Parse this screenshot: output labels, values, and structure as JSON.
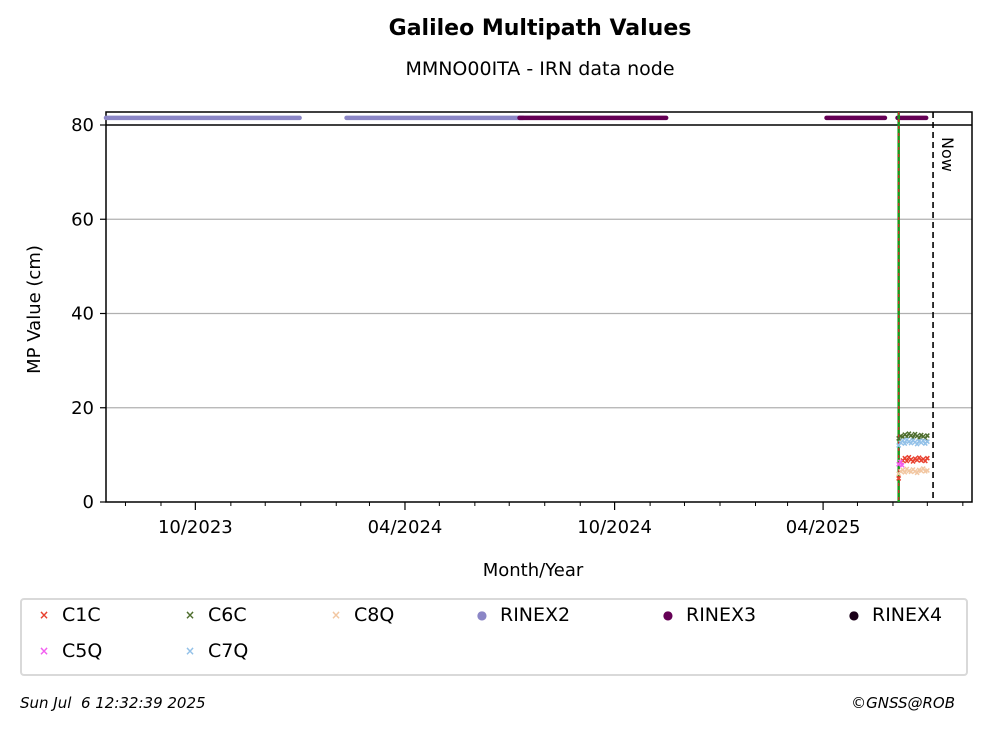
{
  "chart_data": {
    "type": "scatter",
    "title": "Galileo Multipath Values",
    "subtitle": "MMNO00ITA - IRN data node",
    "xlabel": "Month/Year",
    "ylabel": "MP Value (cm)",
    "x_range": [
      "2023-07-15",
      "2025-08-09"
    ],
    "ylim": [
      0,
      80
    ],
    "yticks": [
      0,
      20,
      40,
      60,
      80
    ],
    "xticks": [
      {
        "date": "2023-10-01",
        "label": "10/2023"
      },
      {
        "date": "2024-04-01",
        "label": "04/2024"
      },
      {
        "date": "2024-10-01",
        "label": "10/2024"
      },
      {
        "date": "2025-04-01",
        "label": "04/2025"
      }
    ],
    "minor_xticks": [
      "2023-08-01",
      "2023-09-01",
      "2023-11-01",
      "2023-12-01",
      "2024-01-01",
      "2024-02-01",
      "2024-03-01",
      "2024-05-01",
      "2024-06-01",
      "2024-07-01",
      "2024-08-01",
      "2024-09-01",
      "2024-11-01",
      "2024-12-01",
      "2025-01-01",
      "2025-02-01",
      "2025-03-01",
      "2025-05-01",
      "2025-06-01",
      "2025-07-01",
      "2025-08-01"
    ],
    "grid": "horizontal",
    "now_label": "Now",
    "now_date": "2025-07-06",
    "event_line_date": "2025-06-06",
    "series": [
      {
        "name": "C1C",
        "marker": "x",
        "color": "#e8412f",
        "start": "2025-06-06",
        "end": "2025-07-01",
        "values": [
          5.0,
          8.5,
          8.8,
          9.3,
          8.7,
          9.5,
          9.0,
          8.6,
          9.2,
          8.9,
          9.4,
          8.8,
          9.1,
          8.7,
          9.3
        ]
      },
      {
        "name": "C5Q",
        "marker": "x",
        "color": "#f25ef0",
        "start": "2025-06-06",
        "end": "2025-06-09",
        "values": [
          8.0,
          8.5,
          7.8
        ]
      },
      {
        "name": "C6C",
        "marker": "x",
        "color": "#4e6e2e",
        "start": "2025-06-06",
        "end": "2025-07-01",
        "values": [
          13.5,
          14.0,
          13.8,
          14.3,
          13.9,
          14.5,
          14.1,
          13.7,
          14.4,
          14.0,
          13.6,
          14.2,
          13.9,
          13.5,
          14.1
        ]
      },
      {
        "name": "C7Q",
        "marker": "x",
        "color": "#93c1e8",
        "start": "2025-06-06",
        "end": "2025-07-01",
        "values": [
          12.0,
          12.6,
          13.0,
          12.4,
          13.2,
          12.8,
          12.5,
          13.1,
          12.7,
          12.3,
          12.9,
          12.6,
          13.0,
          12.4,
          12.8
        ]
      },
      {
        "name": "C8Q",
        "marker": "x",
        "color": "#f2c7a2",
        "start": "2025-06-06",
        "end": "2025-07-01",
        "values": [
          6.0,
          6.5,
          6.8,
          6.3,
          7.0,
          6.6,
          6.4,
          6.9,
          6.5,
          6.2,
          6.8,
          6.6,
          7.1,
          6.5,
          6.7
        ]
      }
    ],
    "rinex_bands": [
      {
        "name": "RINEX2",
        "color": "#8b86c6",
        "y": 81.3,
        "segments": [
          [
            "2023-07-15",
            "2023-12-31"
          ],
          [
            "2024-02-10",
            "2024-07-13"
          ]
        ]
      },
      {
        "name": "RINEX3",
        "color": "#650055",
        "y": 81.3,
        "segments": [
          [
            "2024-07-10",
            "2024-11-15"
          ],
          [
            "2025-04-04",
            "2025-05-25"
          ],
          [
            "2025-06-05",
            "2025-06-30"
          ]
        ]
      },
      {
        "name": "RINEX4",
        "color": "#1a0018",
        "y": 81.3,
        "segments": []
      }
    ],
    "legend": {
      "placement": "bottom",
      "entries": [
        "C1C",
        "C6C",
        "C8Q",
        "RINEX2",
        "RINEX3",
        "RINEX4",
        "C5Q",
        "C7Q"
      ]
    }
  },
  "legend_items": [
    {
      "label": "C1C",
      "color": "#e8412f",
      "marker": "×"
    },
    {
      "label": "C6C",
      "color": "#4e6e2e",
      "marker": "×"
    },
    {
      "label": "C8Q",
      "color": "#f2c7a2",
      "marker": "×"
    },
    {
      "label": "RINEX2",
      "color": "#8b86c6",
      "marker": "●"
    },
    {
      "label": "RINEX3",
      "color": "#650055",
      "marker": "●"
    },
    {
      "label": "RINEX4",
      "color": "#1a0018",
      "marker": "●"
    },
    {
      "label": "C5Q",
      "color": "#f25ef0",
      "marker": "×"
    },
    {
      "label": "C7Q",
      "color": "#93c1e8",
      "marker": "×"
    }
  ],
  "footer": {
    "timestamp": "Sun Jul  6 12:32:39 2025",
    "copyright": "©GNSS@ROB"
  }
}
